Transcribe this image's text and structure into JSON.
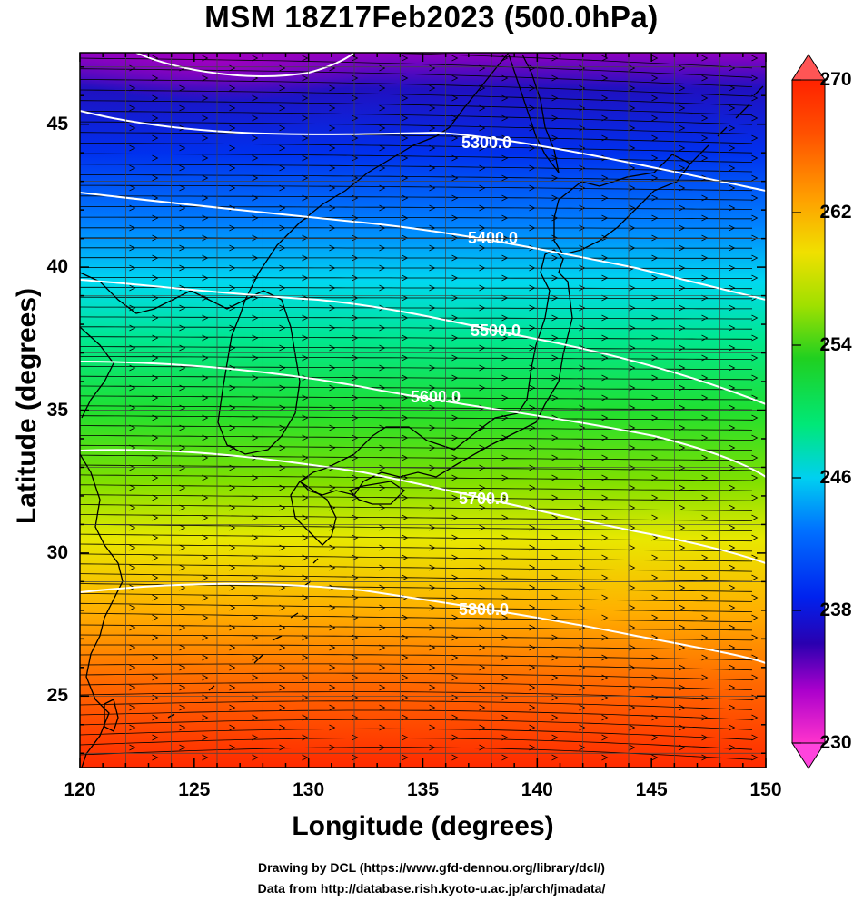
{
  "title": "MSM 18Z17Feb2023 (500.0hPa)",
  "x_axis": {
    "label": "Longitude (degrees)",
    "range": [
      120,
      150
    ],
    "ticks": [
      "120",
      "125",
      "130",
      "135",
      "140",
      "145",
      "150"
    ]
  },
  "y_axis": {
    "label": "Latitude  (degrees)",
    "range": [
      22.5,
      47.5
    ],
    "ticks": [
      "25",
      "30",
      "35",
      "40",
      "45"
    ]
  },
  "colorbar": {
    "range": [
      230,
      270
    ],
    "ticks": [
      "230",
      "238",
      "246",
      "254",
      "262",
      "270"
    ],
    "colors": [
      "#ff33cc",
      "#aa00cc",
      "#2a00b0",
      "#0022ee",
      "#0070ff",
      "#00d0f0",
      "#00e878",
      "#20d020",
      "#a0e000",
      "#f0e000",
      "#ffa000",
      "#ff5000",
      "#ff2200"
    ]
  },
  "contours": [
    {
      "label": "5300.0"
    },
    {
      "label": "5400.0"
    },
    {
      "label": "5500.0"
    },
    {
      "label": "5600.0"
    },
    {
      "label": "5700.0"
    },
    {
      "label": "5800.0"
    }
  ],
  "footer": {
    "line1": "Drawing by DCL (https://www.gfd-dennou.org/library/dcl/)",
    "line2": "Data from http://database.rish.kyoto-u.ac.jp/arch/jmadata/"
  }
}
